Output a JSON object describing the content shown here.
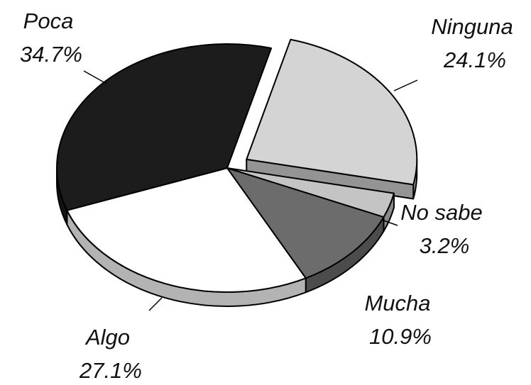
{
  "chart_data": {
    "type": "pie",
    "categories": [
      "Poca",
      "Ninguna",
      "No sabe",
      "Mucha",
      "Algo"
    ],
    "values": [
      34.7,
      24.1,
      3.2,
      10.9,
      27.1
    ],
    "value_labels": [
      "34.7%",
      "24.1%",
      "3.2%",
      "10.9%",
      "27.1%"
    ],
    "colors": [
      "#1c1c1c",
      "#d4d4d4",
      "#c4c4c4",
      "#6c6c6c",
      "#ffffff"
    ],
    "exploded": "Ninguna"
  }
}
